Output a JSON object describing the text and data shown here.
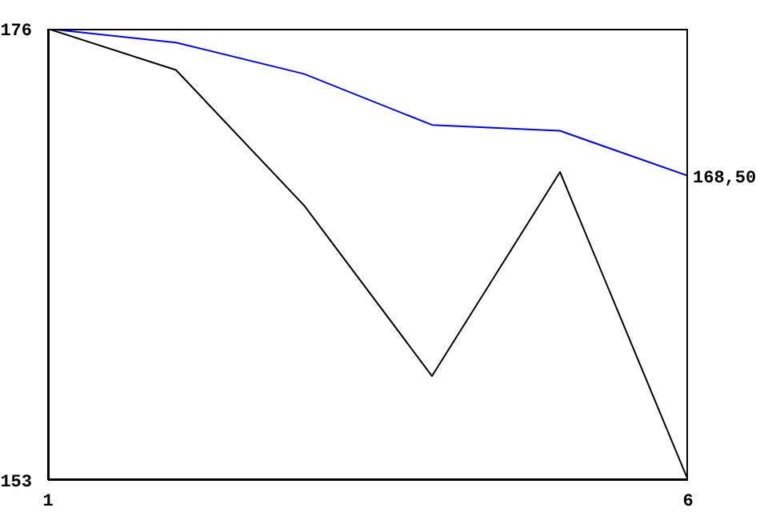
{
  "chart_data": {
    "type": "line",
    "x": [
      1,
      2,
      3,
      4,
      5,
      6
    ],
    "xlim": [
      1,
      6
    ],
    "xticks": [
      1,
      6
    ],
    "ylim": [
      153,
      176
    ],
    "yticks": [
      153,
      176
    ],
    "marker": "none",
    "line_style": "solid",
    "series": [
      {
        "color": "#0000ff",
        "values": [
          176,
          175.3,
          173.7,
          171.1,
          170.8,
          168.5
        ],
        "value_labels": [
          null,
          null,
          null,
          null,
          null,
          "168,50"
        ]
      },
      {
        "color": "#000000",
        "values": [
          176,
          173.9,
          167,
          158.3,
          168.7,
          153
        ]
      }
    ]
  }
}
